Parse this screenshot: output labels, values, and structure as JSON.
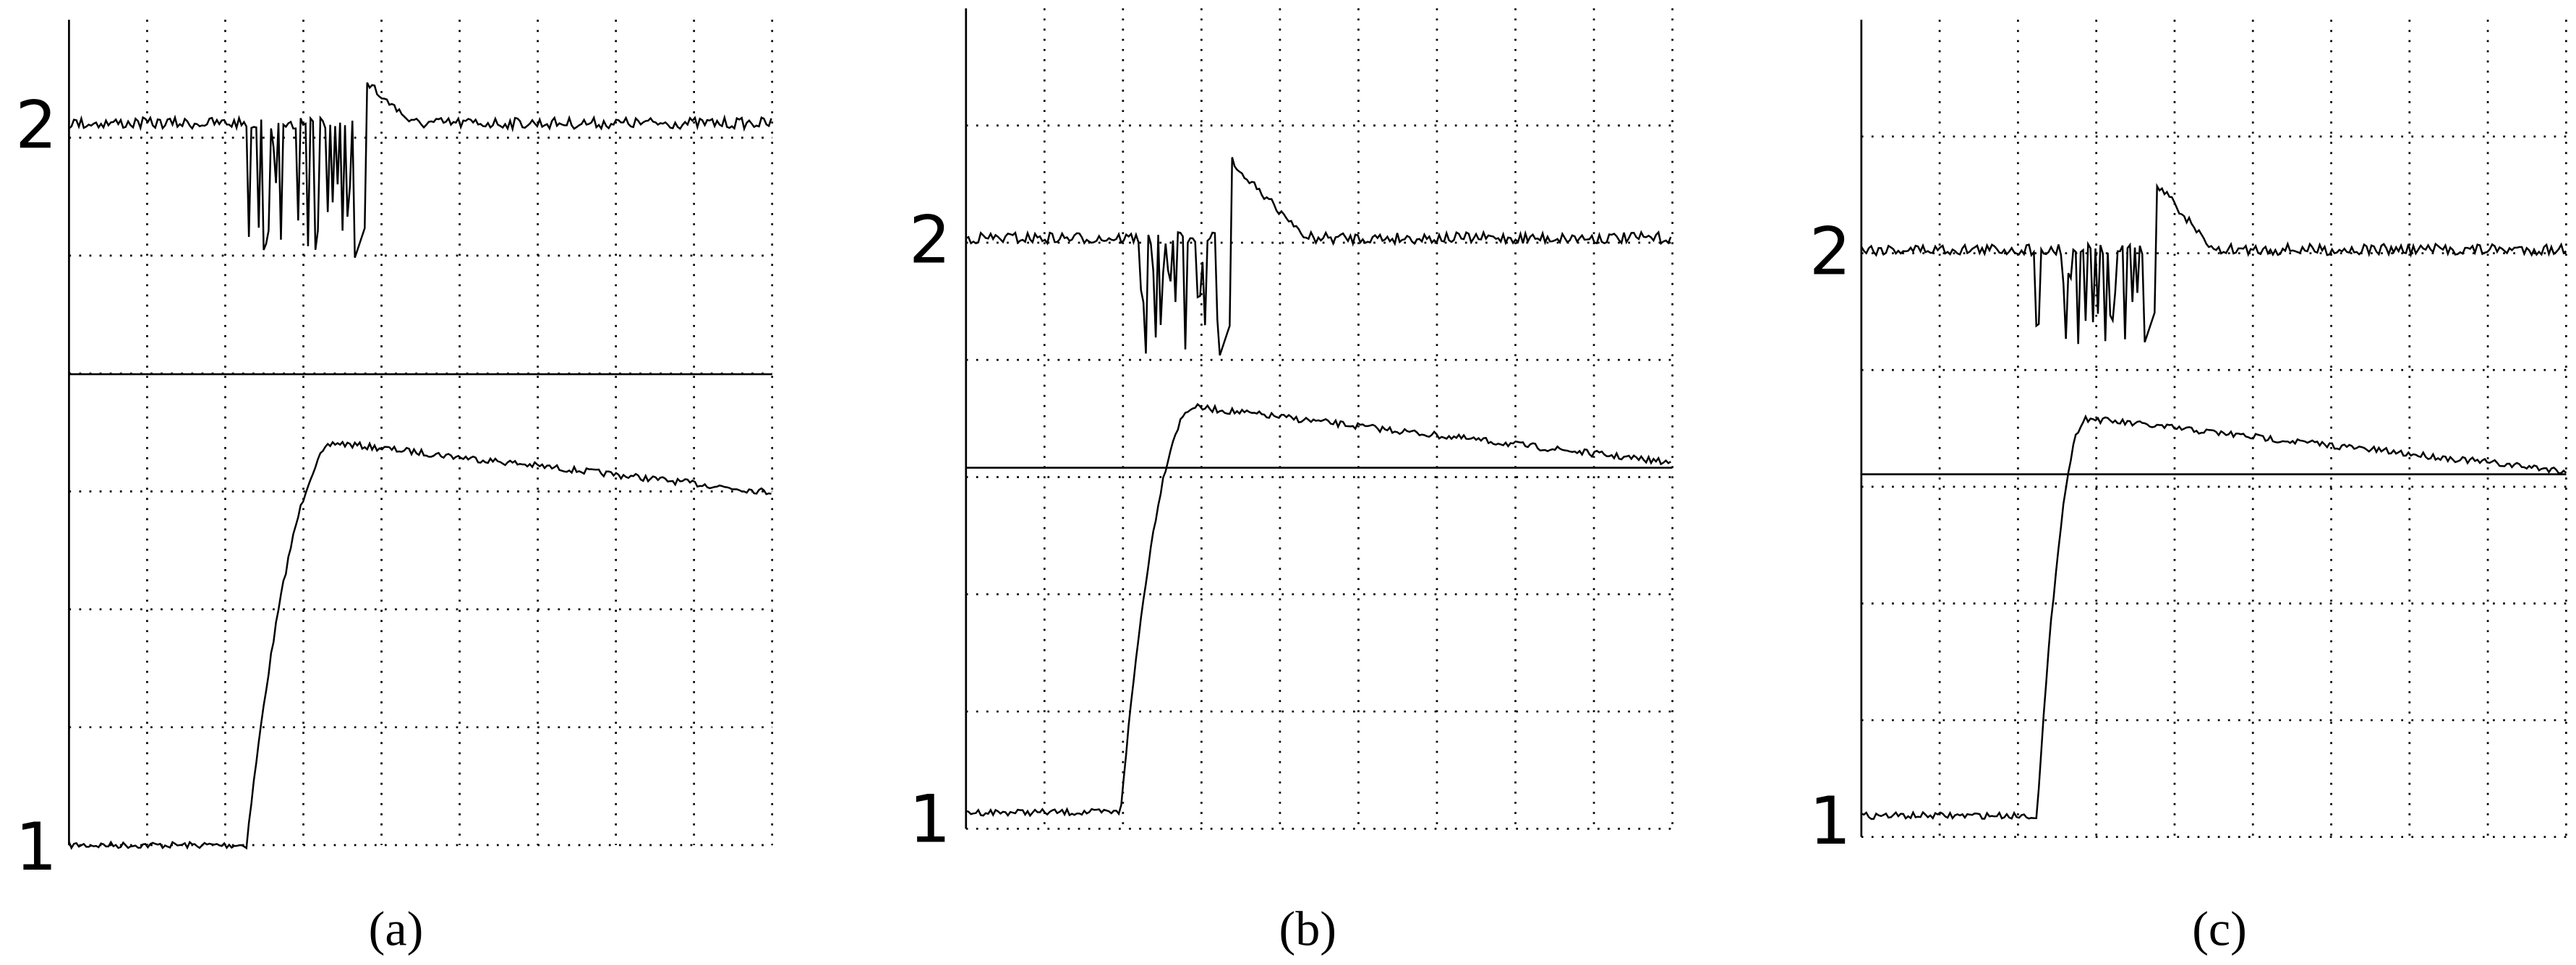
{
  "panels": [
    {
      "label": "(a)",
      "channel_top": "2",
      "channel_bottom": "1"
    },
    {
      "label": "(b)",
      "channel_top": "2",
      "channel_bottom": "1"
    },
    {
      "label": "(c)",
      "channel_top": "2",
      "channel_bottom": "1"
    }
  ]
}
